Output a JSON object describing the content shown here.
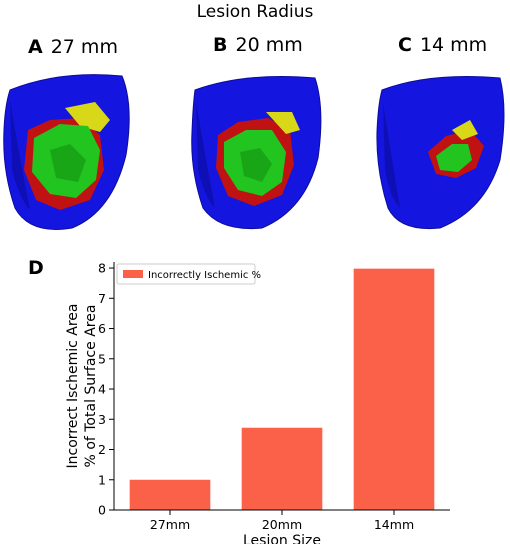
{
  "figure": {
    "title": "Lesion Radius",
    "panels": [
      {
        "letter": "A",
        "label": "27 mm"
      },
      {
        "letter": "B",
        "label": "20 mm"
      },
      {
        "letter": "C",
        "label": "14 mm"
      }
    ],
    "chart_panel_letter": "D"
  },
  "colors": {
    "heart": "#1515e0",
    "heart_dark": "#0c0c9a",
    "green": "#22c41f",
    "green_dark": "#159a13",
    "red": "#c01212",
    "yellow": "#d8d818",
    "bar": "#fb6149"
  },
  "chart_data": {
    "type": "bar",
    "categories": [
      "27mm",
      "20mm",
      "14mm"
    ],
    "series": [
      {
        "name": "Incorrectly Ischemic %",
        "values": [
          1.0,
          2.72,
          7.98
        ]
      }
    ],
    "xlabel": "Lesion Size",
    "ylabel_lines": [
      "Incorrect Ischemic Area",
      "% of Total Surface Area"
    ],
    "ylim": [
      0,
      8.2
    ],
    "yticks": [
      0,
      1,
      2,
      3,
      4,
      5,
      6,
      7,
      8
    ],
    "grid": false,
    "legend": "top-left"
  }
}
